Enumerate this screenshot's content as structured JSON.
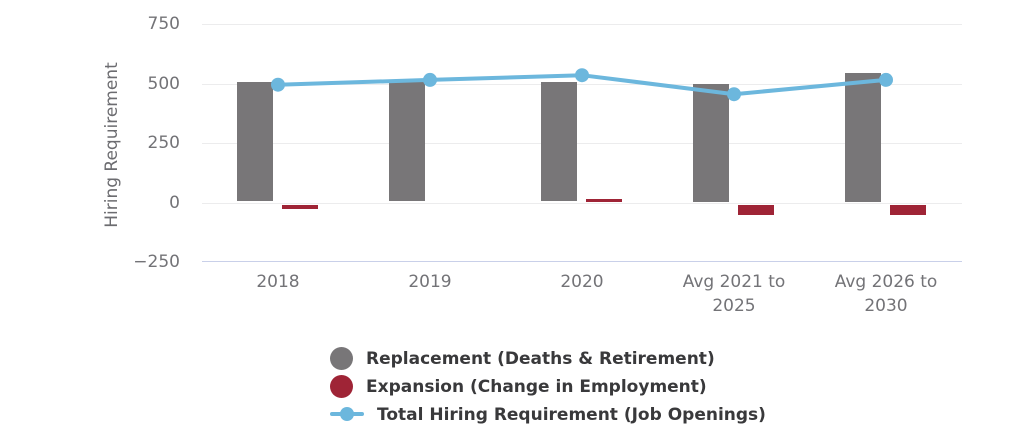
{
  "chart_data": {
    "type": "combo-bar-line",
    "title": "",
    "ylabel": "Hiring Requirement",
    "xlabel": "",
    "ylim": [
      -250,
      750
    ],
    "yticks": [
      750,
      500,
      250,
      0,
      -250
    ],
    "ytick_labels": [
      "750",
      "500",
      "250",
      "0",
      "−250"
    ],
    "grid": true,
    "legend_position": "bottom",
    "background_color": "#ffffff",
    "gridline_color": "#ECECED",
    "baseline_color": "#C9D0E9",
    "tick_label_color": "#737377",
    "axis_title_color": "#6C6C70",
    "legend_text_color": "#39393B",
    "categories": [
      "2018",
      "2019",
      "2020",
      "Avg 2021 to 2025",
      "Avg 2026 to 2030"
    ],
    "category_label_lines": [
      [
        "2018"
      ],
      [
        "2019"
      ],
      [
        "2020"
      ],
      [
        "Avg 2021 to",
        "2025"
      ],
      [
        "Avg 2026 to",
        "2030"
      ]
    ],
    "series": [
      {
        "key": "replacement",
        "name": "Replacement (Deaths & Retirement)",
        "type": "bar",
        "color": "#787678",
        "values": [
          505,
          505,
          505,
          500,
          545
        ]
      },
      {
        "key": "expansion",
        "name": "Expansion (Change in Employment)",
        "type": "bar",
        "color": "#9F2436",
        "values": [
          -15,
          0,
          15,
          -40,
          -40
        ]
      },
      {
        "key": "total",
        "name": "Total Hiring Requirement (Job Openings)",
        "type": "line",
        "color": "#6CB7DD",
        "values": [
          495,
          515,
          535,
          455,
          515
        ]
      }
    ]
  }
}
